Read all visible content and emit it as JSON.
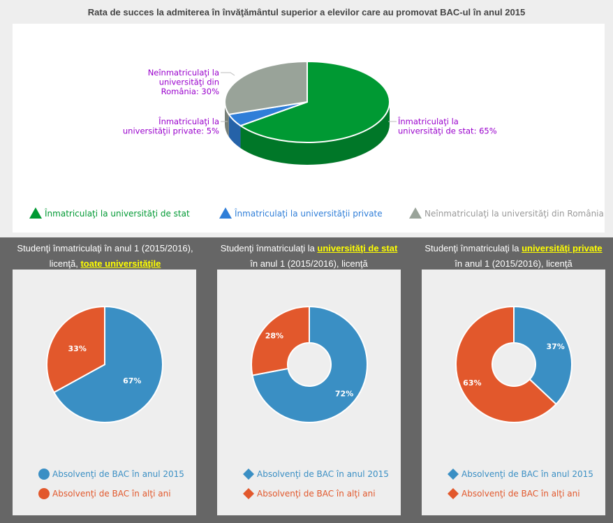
{
  "top_chart": {
    "title": "Rata de succes la admiterea în învăţământul superior a elevilor care au promovat BAC-ul în anul 2015",
    "chart_data": {
      "type": "pie",
      "3d": true,
      "categories": [
        "Înmatriculaţi la universităţi de stat",
        "Înmatriculaţi la universităţii private",
        "Neînmatriculaţi la universităţi din România"
      ],
      "values": [
        65,
        5,
        30
      ],
      "colors": [
        "#009933",
        "#2f7ed8",
        "#99a399"
      ],
      "data_labels": [
        [
          "Înmatriculaţi la",
          "universităţi de stat: 65%"
        ],
        [
          "Înmatriculaţi la",
          "universităţii private: 5%"
        ],
        [
          "Neînmatriculaţi la",
          "universităţi din",
          "România: 30%"
        ]
      ],
      "label_color": "#9900cc",
      "legend": "bottom",
      "legend_marker": "triangle"
    }
  },
  "panels": [
    {
      "heading_pre": "Studenţi înmatriculaţi în anul 1 (2015/2016),",
      "heading_mid": "licenţă, ",
      "heading_link": "toate universităţile",
      "heading_post": "",
      "chart_data": {
        "type": "pie",
        "categories": [
          "Absolvenţi de BAC în anul 2015",
          "Absolvenţi de BAC în alţi ani"
        ],
        "values": [
          67,
          33
        ],
        "colors": [
          "#3a8fc4",
          "#e2582c"
        ],
        "donut": false,
        "legend_marker": "circle",
        "legend": "bottom"
      }
    },
    {
      "heading_pre": "Studenţi înmatriculaţi la ",
      "heading_link": "universităţi de stat",
      "heading_mid": "",
      "heading_post": "în anul 1 (2015/2016), licenţă",
      "chart_data": {
        "type": "pie",
        "categories": [
          "Absolvenţi de BAC în anul 2015",
          "Absolvenţi de BAC în alţi ani"
        ],
        "values": [
          72,
          28
        ],
        "colors": [
          "#3a8fc4",
          "#e2582c"
        ],
        "donut": true,
        "legend_marker": "diamond",
        "legend": "bottom"
      }
    },
    {
      "heading_pre": "Studenţi înmatriculaţi la ",
      "heading_link": "universităţi private",
      "heading_mid": "",
      "heading_post": "în anul 1 (2015/2016), licenţă",
      "chart_data": {
        "type": "pie",
        "categories": [
          "Absolvenţi de BAC în anul 2015",
          "Absolvenţi de BAC în alţi ani"
        ],
        "values": [
          37,
          63
        ],
        "colors": [
          "#3a8fc4",
          "#e2582c"
        ],
        "donut": true,
        "legend_marker": "diamond",
        "legend": "bottom"
      }
    }
  ]
}
